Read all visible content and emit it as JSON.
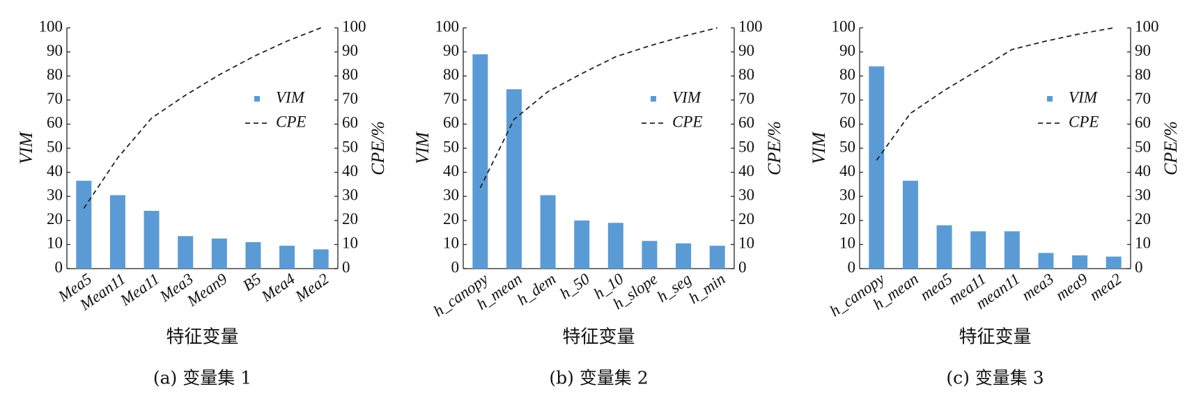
{
  "chart_data": [
    {
      "type": "bar",
      "title": "(a) 变量集 1",
      "xlabel": "特征变量",
      "ylabel": "VIM",
      "y2label": "CPE/%",
      "categories": [
        "Mea5",
        "Mean11",
        "Mea11",
        "Mea3",
        "Mean9",
        "B5",
        "Mea4",
        "Mea2"
      ],
      "series": [
        {
          "name": "VIM",
          "type": "bar",
          "color": "#5b9bd5",
          "values": [
            36.5,
            30.5,
            24,
            13.5,
            12.5,
            11,
            9.5,
            8
          ]
        },
        {
          "name": "CPE",
          "type": "line",
          "axis": "y2",
          "line_style": "dashed",
          "color": "#222222",
          "values": [
            25,
            46,
            62.5,
            72,
            80.5,
            88,
            94.5,
            100
          ]
        }
      ],
      "ylim": [
        0,
        100
      ],
      "yticks": [
        0,
        10,
        20,
        30,
        40,
        50,
        60,
        70,
        80,
        90,
        100
      ],
      "y2lim": [
        0,
        100
      ],
      "y2ticks": [
        0,
        10,
        20,
        30,
        40,
        50,
        60,
        70,
        80,
        90,
        100
      ]
    },
    {
      "type": "bar",
      "title": "(b) 变量集 2",
      "xlabel": "特征变量",
      "ylabel": "VIM",
      "y2label": "CPE/%",
      "categories": [
        "h_canopy",
        "h_mean",
        "h_dem",
        "h_50",
        "h_10",
        "h_slope",
        "h_seg",
        "h_min"
      ],
      "series": [
        {
          "name": "VIM",
          "type": "bar",
          "color": "#5b9bd5",
          "values": [
            89,
            74.5,
            30.5,
            20,
            19,
            11.5,
            10.5,
            9.5
          ]
        },
        {
          "name": "CPE",
          "type": "line",
          "axis": "y2",
          "line_style": "dashed",
          "color": "#222222",
          "values": [
            33.5,
            62,
            73.5,
            81,
            88,
            92.5,
            96.5,
            100
          ]
        }
      ],
      "ylim": [
        0,
        100
      ],
      "yticks": [
        0,
        10,
        20,
        30,
        40,
        50,
        60,
        70,
        80,
        90,
        100
      ],
      "y2lim": [
        0,
        100
      ],
      "y2ticks": [
        0,
        10,
        20,
        30,
        40,
        50,
        60,
        70,
        80,
        90,
        100
      ]
    },
    {
      "type": "bar",
      "title": "(c) 变量集 3",
      "xlabel": "特征变量",
      "ylabel": "VIM",
      "y2label": "CPE/%",
      "categories": [
        "h_canopy",
        "h_mean",
        "mea5",
        "mea11",
        "mean11",
        "mea3",
        "mea9",
        "mea2"
      ],
      "series": [
        {
          "name": "VIM",
          "type": "bar",
          "color": "#5b9bd5",
          "values": [
            84,
            36.5,
            18,
            15.5,
            15.5,
            6.5,
            5.5,
            5
          ]
        },
        {
          "name": "CPE",
          "type": "line",
          "axis": "y2",
          "line_style": "dashed",
          "color": "#222222",
          "values": [
            45,
            64.5,
            74,
            82.5,
            91,
            94.5,
            97.5,
            100
          ]
        }
      ],
      "ylim": [
        0,
        100
      ],
      "yticks": [
        0,
        10,
        20,
        30,
        40,
        50,
        60,
        70,
        80,
        90,
        100
      ],
      "y2lim": [
        0,
        100
      ],
      "y2ticks": [
        0,
        10,
        20,
        30,
        40,
        50,
        60,
        70,
        80,
        90,
        100
      ]
    }
  ]
}
